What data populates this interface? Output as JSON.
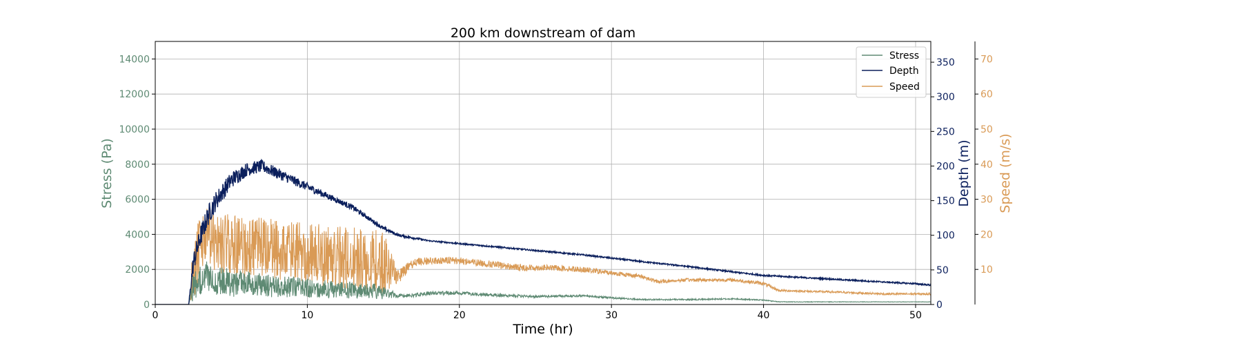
{
  "chart_data": {
    "type": "line",
    "title": "200 km downstream of dam",
    "xlabel": "Time (hr)",
    "xlim": [
      0,
      51
    ],
    "xticks": [
      0,
      10,
      20,
      30,
      40,
      50
    ],
    "grid": true,
    "legend": {
      "placement": "top-right",
      "entries": [
        "Stress",
        "Depth",
        "Speed"
      ]
    },
    "axes": [
      {
        "id": "stress",
        "label": "Stress (Pa)",
        "side": "left",
        "ylim": [
          0,
          15000
        ],
        "ticks": [
          0,
          2000,
          4000,
          6000,
          8000,
          10000,
          12000,
          14000
        ],
        "color": "#5e8a73"
      },
      {
        "id": "depth",
        "label": "Depth (m)",
        "side": "right",
        "ylim": [
          0,
          380
        ],
        "ticks": [
          0,
          50,
          100,
          150,
          200,
          250,
          300,
          350
        ],
        "color": "#0b1f5c"
      },
      {
        "id": "speed",
        "label": "Speed (m/s)",
        "side": "right-offset",
        "ylim": [
          0,
          75
        ],
        "ticks": [
          10,
          20,
          30,
          40,
          50,
          60,
          70
        ],
        "color": "#d99a55"
      }
    ],
    "series": [
      {
        "name": "Stress",
        "axis": "stress",
        "color": "#5e8a73",
        "x": [
          0,
          2.2,
          2.5,
          3,
          3.5,
          4,
          5,
          6,
          7,
          8,
          9,
          10,
          11,
          12,
          13,
          14,
          15,
          16,
          17,
          18,
          20,
          22,
          25,
          28,
          30,
          32,
          35,
          38,
          40,
          41,
          45,
          50,
          51
        ],
        "y": [
          0,
          0,
          900,
          1500,
          1600,
          1400,
          1200,
          1150,
          1100,
          1050,
          1000,
          950,
          900,
          850,
          820,
          780,
          720,
          500,
          520,
          650,
          650,
          550,
          450,
          500,
          380,
          280,
          280,
          320,
          250,
          150,
          150,
          150,
          150
        ],
        "noise": [
          0,
          0,
          800,
          900,
          900,
          850,
          800,
          750,
          700,
          650,
          600,
          550,
          520,
          500,
          480,
          450,
          420,
          120,
          100,
          110,
          100,
          90,
          70,
          60,
          50,
          40,
          40,
          40,
          30,
          20,
          15,
          10,
          10
        ]
      },
      {
        "name": "Depth",
        "axis": "depth",
        "color": "#0b1f5c",
        "x": [
          0,
          2.2,
          2.5,
          3,
          3.5,
          4,
          5,
          6,
          7,
          8,
          9,
          10,
          11,
          12,
          13,
          14,
          15,
          16,
          17,
          18,
          20,
          22,
          25,
          28,
          30,
          32,
          35,
          38,
          40,
          45,
          50,
          51
        ],
        "y": [
          0,
          0,
          60,
          100,
          130,
          150,
          180,
          195,
          200,
          190,
          180,
          170,
          160,
          150,
          140,
          125,
          110,
          100,
          96,
          92,
          88,
          84,
          78,
          72,
          67,
          62,
          55,
          47,
          42,
          36,
          30,
          28
        ],
        "noise": [
          0,
          0,
          15,
          15,
          15,
          14,
          12,
          10,
          9,
          8,
          7,
          6,
          5,
          4,
          4,
          3,
          3,
          2,
          1.5,
          1,
          1,
          1,
          1,
          1,
          1,
          1,
          1,
          1,
          1,
          1,
          1,
          1
        ]
      },
      {
        "name": "Speed",
        "axis": "speed",
        "color": "#d99a55",
        "x": [
          0,
          2.2,
          2.5,
          3,
          3.5,
          4,
          5,
          6,
          7,
          8,
          9,
          10,
          11,
          12,
          13,
          14,
          15,
          16,
          17,
          18,
          20,
          22,
          24,
          26,
          28,
          30,
          32,
          33,
          35,
          38,
          40,
          41,
          45,
          48,
          50,
          51
        ],
        "y": [
          0,
          0,
          10,
          17,
          19,
          18,
          17,
          16,
          16,
          15.5,
          15,
          14.5,
          14,
          13.5,
          13,
          12.5,
          12,
          8,
          12,
          12.5,
          12.5,
          11.5,
          10.5,
          10.5,
          10,
          9,
          8,
          6.5,
          7,
          7,
          6,
          4,
          3.5,
          3,
          3,
          3
        ],
        "noise": [
          0,
          0,
          9,
          9,
          9,
          9,
          9,
          9,
          9,
          9,
          9,
          9,
          9,
          9,
          9,
          9,
          9,
          2,
          1.2,
          1,
          1,
          1,
          1,
          0.8,
          0.8,
          0.7,
          0.6,
          0.5,
          0.5,
          0.5,
          0.5,
          0.3,
          0.3,
          0.3,
          0.3,
          0.3
        ]
      }
    ]
  }
}
